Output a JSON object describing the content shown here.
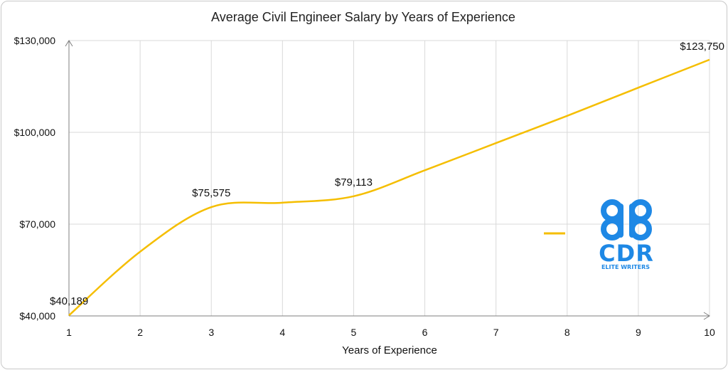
{
  "chart_data": {
    "type": "line",
    "title": "Average Civil Engineer Salary by Years of Experience",
    "xlabel": "Years of Experience",
    "ylabel": "",
    "x": [
      1,
      2,
      3,
      4,
      5,
      6,
      7,
      8,
      9,
      10
    ],
    "xticks": [
      "1",
      "2",
      "3",
      "4",
      "5",
      "6",
      "7",
      "8",
      "9",
      "10"
    ],
    "xlim": [
      1,
      10
    ],
    "ylim": [
      40000,
      130000
    ],
    "yticks": [
      40000,
      70000,
      100000,
      130000
    ],
    "ytick_labels": [
      "$40,000",
      "$70,000",
      "$100,000",
      "$130,000"
    ],
    "grid": true,
    "series": [
      {
        "color": "#F5BE00",
        "values": [
          40189,
          61000,
          75575,
          77000,
          79113,
          87600,
          96500,
          105400,
          114600,
          123750
        ]
      }
    ],
    "data_labels": [
      {
        "x": 1,
        "text": "$40,189"
      },
      {
        "x": 3,
        "text": "$75,575"
      },
      {
        "x": 5,
        "text": "$79,113"
      },
      {
        "x": 10,
        "text": "$123,750"
      }
    ],
    "legend": "right"
  },
  "logo": {
    "brand": "CDR",
    "tagline": "ELITE WRITERS",
    "color": "#1E88E5"
  }
}
